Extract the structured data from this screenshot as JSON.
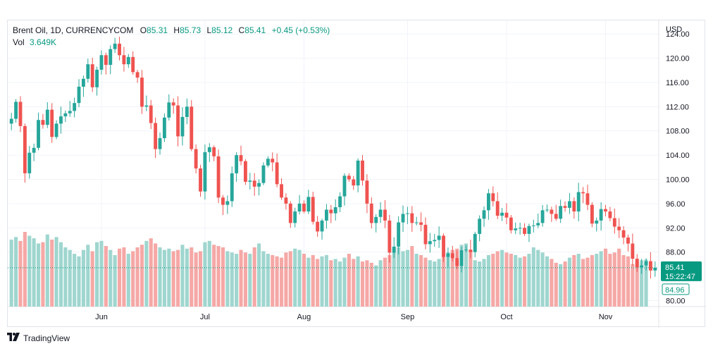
{
  "legend": {
    "symbol": "Brent Oil, 1D, CURRENCYCOM",
    "open_label": "O",
    "open": "85.31",
    "high_label": "H",
    "high": "85.73",
    "low_label": "L",
    "low": "85.12",
    "close_label": "C",
    "close": "85.41",
    "change": "+0.45 (+0.53%)",
    "vol_label": "Vol",
    "vol": "3.649K"
  },
  "price_badge": {
    "price": "85.41",
    "countdown": "15:22:47"
  },
  "prev_close_badge": "84.96",
  "footer": {
    "brand": "TradingView",
    "logo_icon": "tradingview-logo-icon"
  },
  "colors": {
    "up": "#26a69a",
    "down": "#ef5350",
    "vol_up": "#9fd6cf",
    "vol_down": "#f5a8a6",
    "badge": "#089981"
  },
  "chart_data": {
    "type": "candlestick",
    "currency_label": "USD",
    "y_ticks": [
      "124.00",
      "120.00",
      "116.00",
      "112.00",
      "108.00",
      "104.00",
      "100.00",
      "96.00",
      "92.00",
      "88.00",
      "80.00"
    ],
    "ylim": [
      79,
      126
    ],
    "x_ticks": [
      "Jun",
      "Jul",
      "Aug",
      "Sep",
      "Oct",
      "Nov"
    ],
    "month_start_index": [
      20,
      43,
      65,
      88,
      110,
      132
    ],
    "last_price": 85.41,
    "prev_close": 84.96,
    "closes": [
      110.0,
      112.8,
      108.8,
      101.0,
      104.4,
      105.2,
      109.8,
      109.0,
      111.5,
      107.0,
      109.2,
      110.4,
      110.9,
      111.3,
      112.6,
      115.3,
      116.6,
      119.0,
      115.2,
      118.1,
      120.5,
      118.9,
      121.5,
      122.4,
      120.5,
      119.0,
      120.2,
      117.7,
      116.8,
      112.0,
      112.2,
      109.3,
      105.0,
      106.8,
      110.2,
      112.7,
      112.2,
      107.1,
      110.3,
      112.0,
      105.0,
      101.8,
      98.0,
      104.5,
      105.3,
      103.8,
      97.0,
      95.8,
      96.4,
      101.0,
      104.0,
      103.0,
      99.6,
      99.8,
      98.8,
      99.4,
      102.3,
      103.4,
      102.8,
      99.2,
      97.0,
      96.0,
      92.8,
      94.7,
      96.0,
      94.7,
      97.1,
      93.0,
      91.4,
      93.2,
      95.0,
      94.4,
      95.4,
      97.2,
      100.6,
      100.0,
      99.0,
      103.1,
      99.8,
      96.0,
      92.8,
      93.8,
      95.0,
      93.2,
      87.9,
      88.9,
      92.9,
      94.3,
      94.4,
      92.8,
      92.9,
      92.5,
      89.3,
      89.8,
      90.0,
      90.7,
      87.2,
      87.8,
      87.0,
      85.7,
      88.3,
      88.4,
      88.0,
      91.0,
      93.5,
      94.9,
      97.7,
      96.4,
      94.0,
      94.5,
      93.7,
      91.6,
      91.9,
      92.0,
      91.0,
      92.3,
      92.4,
      92.8,
      94.9,
      95.0,
      94.3,
      93.5,
      95.6,
      95.3,
      96.4,
      94.7,
      97.9,
      97.7,
      95.8,
      92.7,
      93.2,
      95.1,
      94.7,
      93.6,
      92.2,
      91.6,
      90.4,
      89.4,
      86.9,
      85.5,
      85.8,
      86.5,
      84.96,
      85.41
    ],
    "volume_k": [
      5.2,
      5.4,
      5.1,
      5.8,
      5.5,
      5.3,
      4.9,
      5.0,
      5.6,
      5.2,
      5.4,
      5.0,
      4.6,
      4.4,
      4.1,
      3.9,
      4.4,
      4.8,
      4.3,
      5.0,
      5.1,
      4.7,
      4.4,
      4.0,
      4.5,
      4.6,
      4.1,
      4.3,
      4.6,
      4.8,
      5.1,
      5.3,
      4.9,
      4.6,
      4.4,
      4.5,
      4.3,
      4.4,
      4.8,
      4.5,
      4.6,
      4.2,
      4.3,
      5.0,
      5.1,
      4.8,
      4.7,
      4.6,
      4.3,
      4.2,
      4.1,
      4.4,
      4.2,
      4.1,
      4.6,
      4.9,
      4.3,
      4.1,
      4.0,
      3.9,
      3.8,
      4.2,
      4.3,
      4.5,
      4.4,
      4.1,
      3.8,
      4.0,
      3.7,
      3.9,
      4.0,
      3.6,
      3.7,
      3.5,
      3.8,
      4.1,
      3.7,
      3.9,
      3.5,
      3.6,
      3.4,
      3.2,
      3.6,
      3.8,
      4.0,
      4.2,
      4.6,
      4.3,
      4.4,
      4.7,
      4.1,
      4.0,
      3.8,
      3.6,
      3.5,
      3.7,
      4.0,
      4.2,
      4.4,
      4.5,
      4.8,
      4.9,
      4.4,
      3.6,
      3.5,
      3.7,
      4.0,
      4.1,
      4.3,
      4.4,
      4.2,
      4.1,
      4.0,
      3.8,
      3.9,
      4.1,
      4.6,
      4.4,
      4.2,
      3.9,
      3.7,
      3.4,
      3.3,
      3.5,
      3.8,
      4.0,
      4.1,
      3.7,
      3.8,
      4.0,
      4.1,
      4.3,
      4.5,
      4.1,
      4.2,
      4.5,
      4.0,
      3.9,
      3.3,
      3.5,
      3.6,
      3.649
    ]
  }
}
